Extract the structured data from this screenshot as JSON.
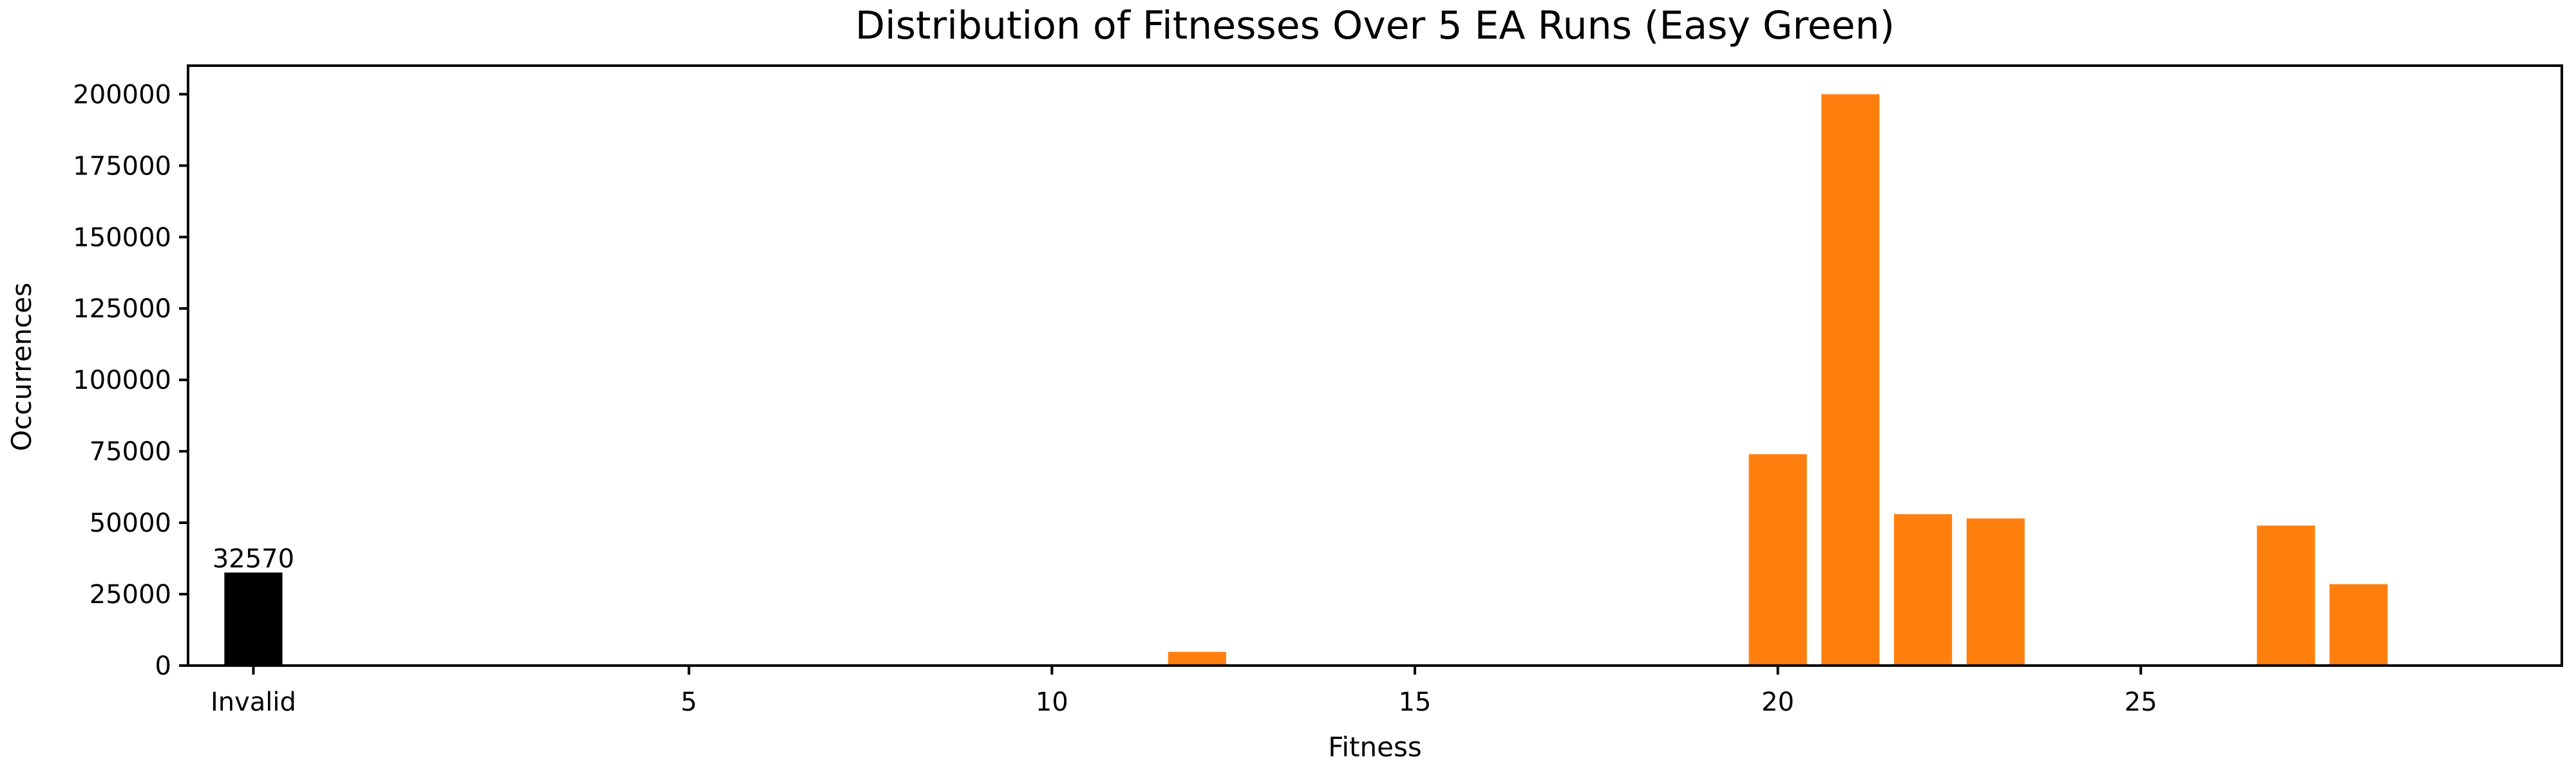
{
  "chart_data": {
    "type": "bar",
    "title": "Distribution of Fitnesses Over 5 EA Runs (Easy Green)",
    "xlabel": "Fitness",
    "ylabel": "Occurrences",
    "xlim": [
      -0.9,
      31.8
    ],
    "ylim": [
      0,
      210000
    ],
    "grid": false,
    "legend": "none",
    "x_ticks": [
      {
        "value": 0,
        "label": "Invalid"
      },
      {
        "value": 6,
        "label": "5"
      },
      {
        "value": 11,
        "label": "10"
      },
      {
        "value": 16,
        "label": "15"
      },
      {
        "value": 21,
        "label": "20"
      },
      {
        "value": 26,
        "label": "25"
      }
    ],
    "y_ticks": [
      0,
      25000,
      50000,
      75000,
      100000,
      125000,
      150000,
      175000,
      200000
    ],
    "bar_width": 0.8,
    "series": [
      {
        "color": "#000000",
        "bars": [
          {
            "x": 0,
            "value": 32570,
            "label": "32570"
          }
        ]
      },
      {
        "color": "#ff7f0e",
        "bars": [
          {
            "x": 12,
            "value": 300
          },
          {
            "x": 13,
            "value": 4800
          },
          {
            "x": 17,
            "value": 400
          },
          {
            "x": 19,
            "value": 200
          },
          {
            "x": 20,
            "value": 300
          },
          {
            "x": 21,
            "value": 74000
          },
          {
            "x": 22,
            "value": 200000
          },
          {
            "x": 23,
            "value": 53000
          },
          {
            "x": 24,
            "value": 51500
          },
          {
            "x": 28,
            "value": 49000
          },
          {
            "x": 29,
            "value": 28500
          }
        ]
      }
    ]
  }
}
